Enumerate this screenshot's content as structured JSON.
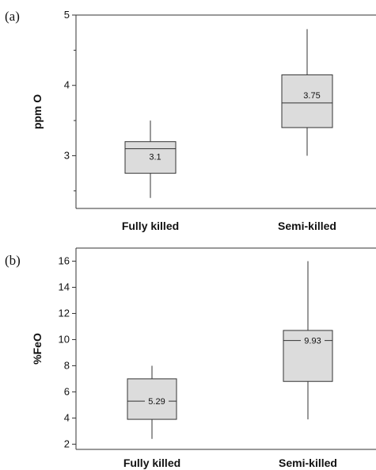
{
  "chart_data": [
    {
      "panel_label": "(a)",
      "type": "boxplot",
      "ylabel": "ppm O",
      "ylim": [
        2.25,
        5.0
      ],
      "yticks": [
        3,
        4,
        5
      ],
      "categories": [
        "Fully killed",
        "Semi-killed"
      ],
      "boxes": [
        {
          "category": "Fully killed",
          "whisker_low": 2.4,
          "q1": 2.75,
          "median": 3.1,
          "q3": 3.2,
          "whisker_high": 3.5,
          "label": "3.1"
        },
        {
          "category": "Semi-killed",
          "whisker_low": 3.0,
          "q1": 3.4,
          "median": 3.75,
          "q3": 4.15,
          "whisker_high": 4.8,
          "label": "3.75"
        }
      ]
    },
    {
      "panel_label": "(b)",
      "type": "boxplot",
      "ylabel": "%FeO",
      "ylim": [
        1.6,
        17.0
      ],
      "yticks": [
        2,
        4,
        6,
        8,
        10,
        12,
        14,
        16
      ],
      "categories": [
        "Fully killed",
        "Semi-killed"
      ],
      "boxes": [
        {
          "category": "Fully killed",
          "whisker_low": 2.4,
          "q1": 3.9,
          "median": 5.29,
          "q3": 7.0,
          "whisker_high": 8.0,
          "label": "5.29"
        },
        {
          "category": "Semi-killed",
          "whisker_low": 3.9,
          "q1": 6.8,
          "median": 9.93,
          "q3": 10.7,
          "whisker_high": 16.0,
          "label": "9.93"
        }
      ]
    }
  ],
  "colors": {
    "box_fill": "#dcdcdc",
    "stroke": "#333333"
  }
}
